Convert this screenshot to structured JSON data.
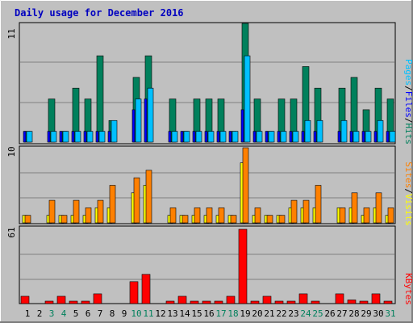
{
  "chart_data": [
    {
      "type": "bar",
      "title": "Daily usage for December 2016",
      "y_tick_label": "11",
      "legend": [
        "Pages",
        "Files",
        "Hits"
      ],
      "categories": [
        "1",
        "2",
        "3",
        "4",
        "5",
        "6",
        "7",
        "8",
        "9",
        "10",
        "11",
        "12",
        "13",
        "14",
        "15",
        "16",
        "17",
        "18",
        "19",
        "20",
        "21",
        "22",
        "23",
        "24",
        "25",
        "26",
        "27",
        "28",
        "29",
        "30",
        "31"
      ],
      "weekend_categories": [
        "3",
        "4",
        "10",
        "11",
        "17",
        "18",
        "24",
        "25",
        "31"
      ],
      "ylim": [
        0,
        11
      ],
      "series": [
        {
          "name": "Hits",
          "color": "#00805c",
          "values": [
            1,
            0,
            4,
            1,
            5,
            4,
            8,
            2,
            0,
            6,
            8,
            0,
            4,
            1,
            4,
            4,
            4,
            1,
            11,
            4,
            1,
            4,
            4,
            7,
            5,
            0,
            5,
            6,
            3,
            5,
            4
          ]
        },
        {
          "name": "Files",
          "color": "#00c0ff",
          "values": [
            1,
            0,
            1,
            1,
            1,
            1,
            1,
            2,
            0,
            4,
            5,
            0,
            1,
            1,
            1,
            1,
            1,
            1,
            8,
            1,
            1,
            1,
            1,
            2,
            2,
            0,
            2,
            1,
            1,
            2,
            1
          ]
        },
        {
          "name": "Pages",
          "color": "#0000ff",
          "values": [
            1,
            0,
            1,
            1,
            1,
            1,
            1,
            1,
            0,
            3,
            4,
            0,
            1,
            1,
            1,
            1,
            1,
            1,
            3,
            1,
            1,
            1,
            1,
            1,
            1,
            0,
            1,
            1,
            1,
            1,
            1
          ]
        }
      ]
    },
    {
      "type": "bar",
      "y_tick_label": "10",
      "legend": [
        "Sites",
        "Visits"
      ],
      "ylim": [
        0,
        10
      ],
      "series": [
        {
          "name": "Visits",
          "color": "#ff8000",
          "values": [
            1,
            0,
            3,
            1,
            3,
            2,
            3,
            5,
            0,
            6,
            7,
            0,
            2,
            1,
            2,
            2,
            2,
            1,
            10,
            2,
            1,
            1,
            3,
            3,
            5,
            0,
            2,
            4,
            2,
            4,
            2
          ]
        },
        {
          "name": "Sites",
          "color": "#ffff00",
          "values": [
            1,
            0,
            1,
            1,
            1,
            1,
            2,
            2,
            0,
            4,
            5,
            0,
            1,
            1,
            1,
            1,
            1,
            1,
            8,
            1,
            1,
            1,
            2,
            2,
            2,
            0,
            2,
            2,
            1,
            2,
            1
          ]
        }
      ]
    },
    {
      "type": "bar",
      "y_tick_label": "61",
      "legend": [
        "KBytes"
      ],
      "ylim": [
        0,
        61
      ],
      "series": [
        {
          "name": "KBytes",
          "color": "#ff0000",
          "values": [
            6,
            0,
            2,
            6,
            2,
            2,
            8,
            0,
            0,
            18,
            24,
            0,
            2,
            6,
            2,
            2,
            2,
            6,
            61,
            2,
            6,
            2,
            2,
            8,
            2,
            0,
            8,
            3,
            2,
            8,
            2
          ]
        }
      ]
    }
  ]
}
